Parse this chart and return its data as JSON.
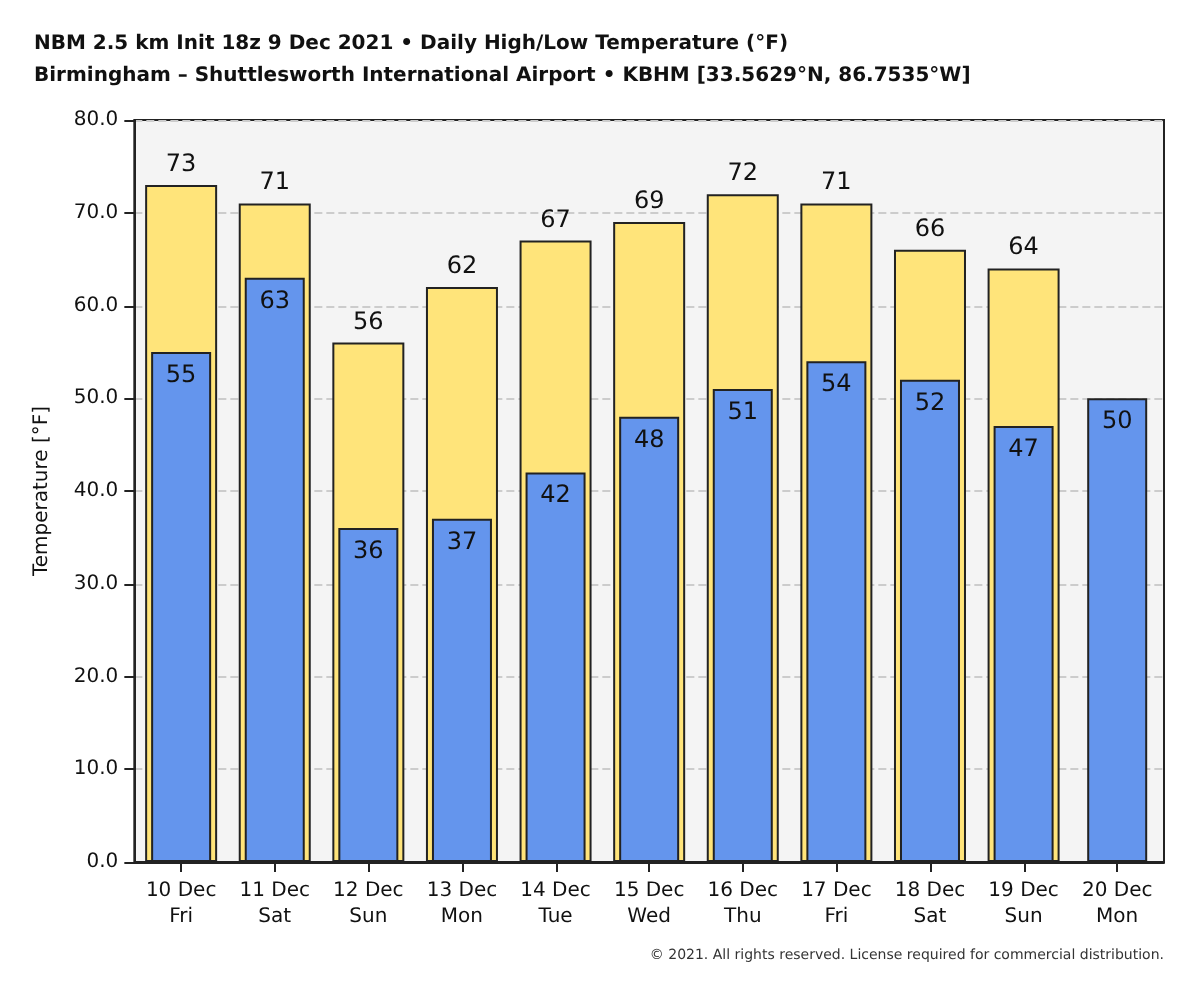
{
  "chart_data": {
    "type": "bar",
    "title": "NBM 2.5 km Init 18z 9 Dec 2021 • Daily High/Low Temperature (°F)",
    "subtitle": "Birmingham – Shuttlesworth International Airport • KBHM [33.5629°N, 86.7535°W]",
    "ylabel": "Temperature [°F]",
    "categories": [
      "10 Dec\nFri",
      "11 Dec\nSat",
      "12 Dec\nSun",
      "13 Dec\nMon",
      "14 Dec\nTue",
      "15 Dec\nWed",
      "16 Dec\nThu",
      "17 Dec\nFri",
      "18 Dec\nSat",
      "19 Dec\nSun",
      "20 Dec\nMon"
    ],
    "series": [
      {
        "color": "#ffe47a",
        "values": [
          73,
          71,
          56,
          62,
          67,
          69,
          72,
          71,
          66,
          64,
          null
        ]
      },
      {
        "color": "#6495ed",
        "values": [
          55,
          63,
          36,
          37,
          42,
          48,
          51,
          54,
          52,
          47,
          50
        ]
      }
    ],
    "ylim": [
      0,
      80
    ],
    "yticks": [
      {
        "value": 0,
        "label": "0.0"
      },
      {
        "value": 10,
        "label": "10.0"
      },
      {
        "value": 20,
        "label": "20.0"
      },
      {
        "value": 30,
        "label": "30.0"
      },
      {
        "value": 40,
        "label": "40.0"
      },
      {
        "value": 50,
        "label": "50.0"
      },
      {
        "value": 60,
        "label": "60.0"
      },
      {
        "value": 70,
        "label": "70.0"
      },
      {
        "value": 80,
        "label": "80.0"
      }
    ],
    "grid": "y",
    "data_labels": true,
    "annotations": [
      "© 2021. All rights reserved. License required for commercial distribution."
    ]
  }
}
